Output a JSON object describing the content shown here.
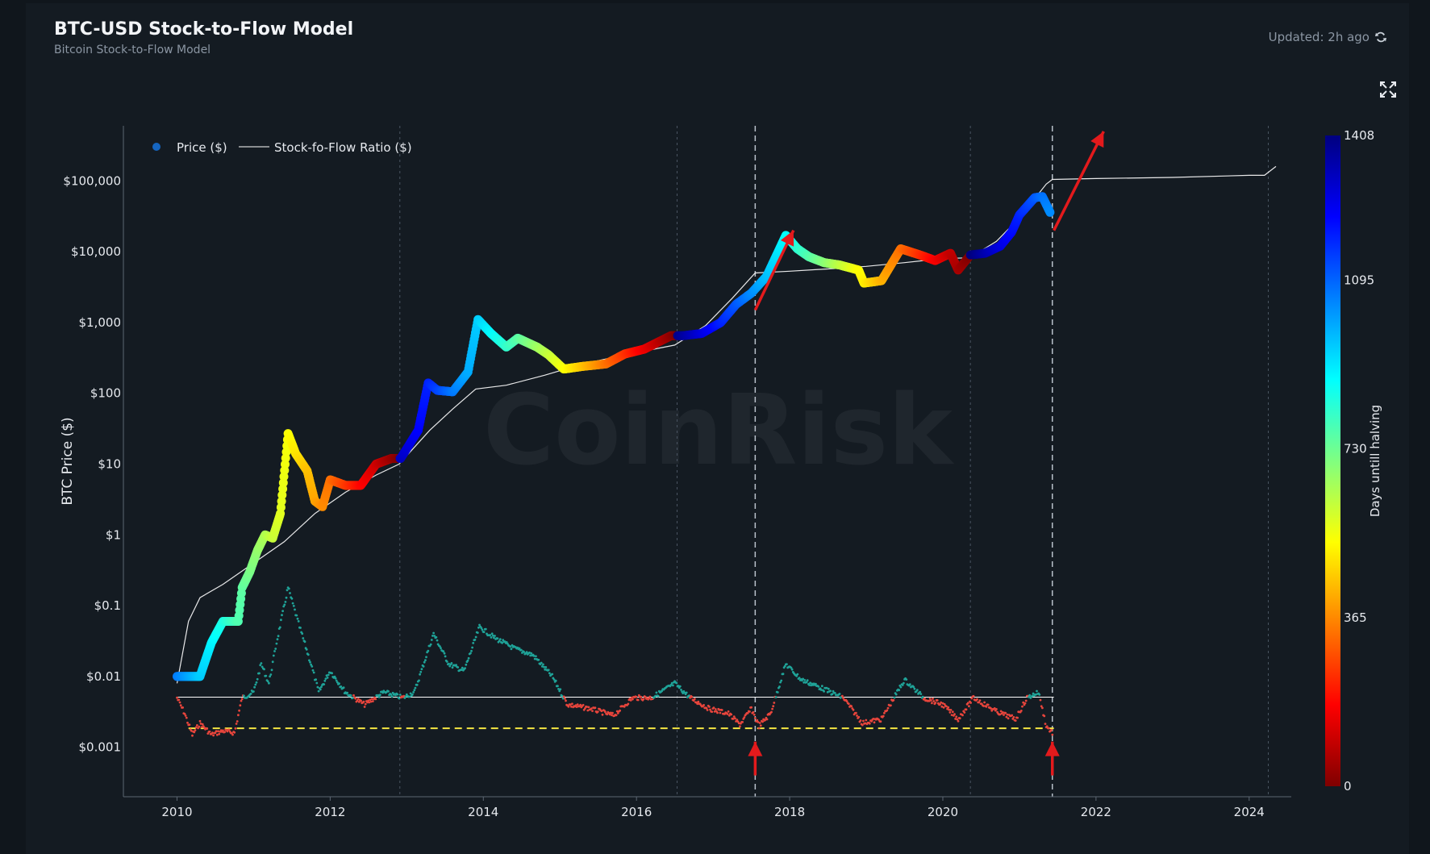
{
  "header": {
    "title": "BTC-USD Stock-to-Flow Model",
    "subtitle": "Bitcoin Stock-to-Flow Model",
    "updated": "Updated: 2h ago",
    "refresh_icon": "refresh-icon",
    "expand_icon": "fullscreen-expand-icon"
  },
  "watermark": "CoinRisk",
  "chart_data": {
    "type": "scatter",
    "title": "BTC-USD Stock-to-Flow Model",
    "ylabel": "BTC Price ($)",
    "yscale": "log",
    "ylim": [
      0.0002,
      600000
    ],
    "xlim": [
      2009.3,
      2024.55
    ],
    "y_ticks": [
      {
        "v": 0.001,
        "label": "$0.001"
      },
      {
        "v": 0.01,
        "label": "$0.01"
      },
      {
        "v": 0.1,
        "label": "$0.1"
      },
      {
        "v": 1,
        "label": "$1"
      },
      {
        "v": 10,
        "label": "$10"
      },
      {
        "v": 100,
        "label": "$100"
      },
      {
        "v": 1000,
        "label": "$1,000"
      },
      {
        "v": 10000,
        "label": "$10,000"
      },
      {
        "v": 100000,
        "label": "$100,000"
      }
    ],
    "x_ticks": [
      {
        "v": 2010,
        "label": "2010"
      },
      {
        "v": 2012,
        "label": "2012"
      },
      {
        "v": 2014,
        "label": "2014"
      },
      {
        "v": 2016,
        "label": "2016"
      },
      {
        "v": 2018,
        "label": "2018"
      },
      {
        "v": 2020,
        "label": "2020"
      },
      {
        "v": 2022,
        "label": "2022"
      },
      {
        "v": 2024,
        "label": "2024"
      }
    ],
    "legend": {
      "placement": "top-left",
      "items": [
        {
          "label": "Price ($)",
          "marker": "dot",
          "color": "#1565c0"
        },
        {
          "label": "Stock-fo-Flow Ratio ($)",
          "marker": "line",
          "color": "#ffffff"
        }
      ]
    },
    "colorbar": {
      "label": "Days untill halving",
      "min": 0,
      "max": 1408,
      "ticks": [
        {
          "v": 0,
          "label": "0"
        },
        {
          "v": 365,
          "label": "365"
        },
        {
          "v": 730,
          "label": "730"
        },
        {
          "v": 1095,
          "label": "1095"
        },
        {
          "v": 1408,
          "label": "1408"
        }
      ],
      "stops": [
        "#7f0000",
        "#ff0000",
        "#ff8000",
        "#ffff00",
        "#80ff80",
        "#00ffff",
        "#0080ff",
        "#0000ff",
        "#00007f"
      ]
    },
    "halving_lines": [
      2012.91,
      2016.53,
      2020.36,
      2024.25
    ],
    "event_lines": [
      2017.55,
      2021.43
    ],
    "series": [
      {
        "name": "Price ($)",
        "points": [
          [
            2010.0,
            0.01
          ],
          [
            2010.3,
            0.01
          ],
          [
            2010.45,
            0.03
          ],
          [
            2010.6,
            0.06
          ],
          [
            2010.8,
            0.06
          ],
          [
            2010.85,
            0.18
          ],
          [
            2010.95,
            0.3
          ],
          [
            2011.05,
            0.6
          ],
          [
            2011.15,
            1.0
          ],
          [
            2011.25,
            0.9
          ],
          [
            2011.35,
            2.0
          ],
          [
            2011.45,
            27
          ],
          [
            2011.55,
            14
          ],
          [
            2011.7,
            8
          ],
          [
            2011.8,
            3
          ],
          [
            2011.9,
            2.5
          ],
          [
            2012.0,
            6
          ],
          [
            2012.2,
            5
          ],
          [
            2012.4,
            5
          ],
          [
            2012.6,
            10
          ],
          [
            2012.8,
            12
          ],
          [
            2012.92,
            12
          ],
          [
            2013.15,
            30
          ],
          [
            2013.28,
            140
          ],
          [
            2013.4,
            110
          ],
          [
            2013.6,
            105
          ],
          [
            2013.8,
            200
          ],
          [
            2013.93,
            1100
          ],
          [
            2014.1,
            700
          ],
          [
            2014.3,
            450
          ],
          [
            2014.45,
            600
          ],
          [
            2014.7,
            450
          ],
          [
            2014.85,
            350
          ],
          [
            2015.05,
            220
          ],
          [
            2015.3,
            240
          ],
          [
            2015.6,
            260
          ],
          [
            2015.85,
            360
          ],
          [
            2016.1,
            420
          ],
          [
            2016.45,
            650
          ],
          [
            2016.6,
            650
          ],
          [
            2016.85,
            700
          ],
          [
            2017.1,
            1000
          ],
          [
            2017.3,
            1800
          ],
          [
            2017.5,
            2600
          ],
          [
            2017.7,
            4500
          ],
          [
            2017.95,
            17000
          ],
          [
            2018.1,
            11000
          ],
          [
            2018.25,
            8500
          ],
          [
            2018.45,
            7000
          ],
          [
            2018.65,
            6500
          ],
          [
            2018.9,
            5500
          ],
          [
            2018.97,
            3600
          ],
          [
            2019.2,
            3900
          ],
          [
            2019.45,
            11000
          ],
          [
            2019.7,
            9000
          ],
          [
            2019.9,
            7500
          ],
          [
            2020.1,
            9500
          ],
          [
            2020.2,
            5500
          ],
          [
            2020.36,
            9000
          ],
          [
            2020.55,
            9500
          ],
          [
            2020.75,
            12000
          ],
          [
            2020.9,
            19000
          ],
          [
            2021.0,
            33000
          ],
          [
            2021.2,
            58000
          ],
          [
            2021.3,
            60000
          ],
          [
            2021.4,
            36000
          ]
        ]
      },
      {
        "name": "Stock-fo-Flow Ratio ($)",
        "points": [
          [
            2010.0,
            0.008
          ],
          [
            2010.15,
            0.06
          ],
          [
            2010.3,
            0.13
          ],
          [
            2010.6,
            0.2
          ],
          [
            2011.0,
            0.4
          ],
          [
            2011.4,
            0.8
          ],
          [
            2011.8,
            2.0
          ],
          [
            2012.2,
            4
          ],
          [
            2012.6,
            7
          ],
          [
            2012.9,
            10
          ],
          [
            2013.3,
            30
          ],
          [
            2013.6,
            60
          ],
          [
            2013.9,
            115
          ],
          [
            2014.3,
            130
          ],
          [
            2014.8,
            180
          ],
          [
            2015.3,
            260
          ],
          [
            2015.8,
            340
          ],
          [
            2016.5,
            480
          ],
          [
            2016.9,
            900
          ],
          [
            2017.25,
            2200
          ],
          [
            2017.55,
            5000
          ],
          [
            2018.0,
            5300
          ],
          [
            2018.6,
            5800
          ],
          [
            2019.0,
            6200
          ],
          [
            2019.5,
            7000
          ],
          [
            2020.0,
            8000
          ],
          [
            2020.35,
            8200
          ],
          [
            2020.7,
            14000
          ],
          [
            2021.0,
            30000
          ],
          [
            2021.35,
            90000
          ],
          [
            2021.43,
            105000
          ],
          [
            2022.0,
            108000
          ],
          [
            2023.0,
            112000
          ],
          [
            2024.0,
            120000
          ],
          [
            2024.2,
            120000
          ],
          [
            2024.35,
            160000
          ]
        ]
      },
      {
        "name": "S2F deviation",
        "points": [
          [
            2010.0,
            0.005
          ],
          [
            2010.1,
            0.003
          ],
          [
            2010.2,
            0.0015
          ],
          [
            2010.3,
            0.0022
          ],
          [
            2010.45,
            0.0015
          ],
          [
            2010.6,
            0.0017
          ],
          [
            2010.75,
            0.0016
          ],
          [
            2010.85,
            0.005
          ],
          [
            2011.0,
            0.006
          ],
          [
            2011.1,
            0.015
          ],
          [
            2011.2,
            0.008
          ],
          [
            2011.3,
            0.03
          ],
          [
            2011.45,
            0.18
          ],
          [
            2011.6,
            0.05
          ],
          [
            2011.75,
            0.015
          ],
          [
            2011.85,
            0.006
          ],
          [
            2012.0,
            0.012
          ],
          [
            2012.2,
            0.006
          ],
          [
            2012.45,
            0.004
          ],
          [
            2012.7,
            0.006
          ],
          [
            2012.95,
            0.005
          ],
          [
            2013.1,
            0.006
          ],
          [
            2013.35,
            0.04
          ],
          [
            2013.55,
            0.015
          ],
          [
            2013.75,
            0.012
          ],
          [
            2013.95,
            0.05
          ],
          [
            2014.15,
            0.035
          ],
          [
            2014.4,
            0.025
          ],
          [
            2014.65,
            0.02
          ],
          [
            2014.9,
            0.01
          ],
          [
            2015.1,
            0.004
          ],
          [
            2015.4,
            0.0035
          ],
          [
            2015.7,
            0.0028
          ],
          [
            2015.95,
            0.005
          ],
          [
            2016.2,
            0.005
          ],
          [
            2016.5,
            0.008
          ],
          [
            2016.7,
            0.005
          ],
          [
            2016.95,
            0.0035
          ],
          [
            2017.2,
            0.003
          ],
          [
            2017.35,
            0.0021
          ],
          [
            2017.5,
            0.0035
          ],
          [
            2017.6,
            0.002
          ],
          [
            2017.75,
            0.003
          ],
          [
            2017.95,
            0.015
          ],
          [
            2018.15,
            0.009
          ],
          [
            2018.4,
            0.007
          ],
          [
            2018.7,
            0.005
          ],
          [
            2018.95,
            0.0022
          ],
          [
            2019.2,
            0.0025
          ],
          [
            2019.5,
            0.009
          ],
          [
            2019.75,
            0.005
          ],
          [
            2020.0,
            0.004
          ],
          [
            2020.2,
            0.0025
          ],
          [
            2020.4,
            0.005
          ],
          [
            2020.7,
            0.0032
          ],
          [
            2020.95,
            0.0025
          ],
          [
            2021.1,
            0.005
          ],
          [
            2021.25,
            0.006
          ],
          [
            2021.35,
            0.002
          ],
          [
            2021.43,
            0.0016
          ]
        ]
      }
    ],
    "reference_lines": [
      {
        "y": 0.0051,
        "from": 2010.0,
        "to": 2021.45,
        "color": "#ffffff",
        "style": "solid"
      },
      {
        "y": 0.00185,
        "from": 2010.15,
        "to": 2021.45,
        "color": "#f5e642",
        "style": "dashed"
      }
    ],
    "annotations": [
      {
        "type": "arrow",
        "from": [
          2017.55,
          1500
        ],
        "to": [
          2018.05,
          20000
        ],
        "color": "#e31a1c"
      },
      {
        "type": "arrow",
        "from": [
          2021.45,
          20000
        ],
        "to": [
          2022.1,
          500000
        ],
        "color": "#e31a1c"
      },
      {
        "type": "arrow",
        "from": [
          2017.55,
          0.0004
        ],
        "to": [
          2017.55,
          0.0012
        ],
        "color": "#e31a1c"
      },
      {
        "type": "arrow",
        "from": [
          2021.43,
          0.0004
        ],
        "to": [
          2021.43,
          0.0012
        ],
        "color": "#e31a1c"
      }
    ]
  }
}
